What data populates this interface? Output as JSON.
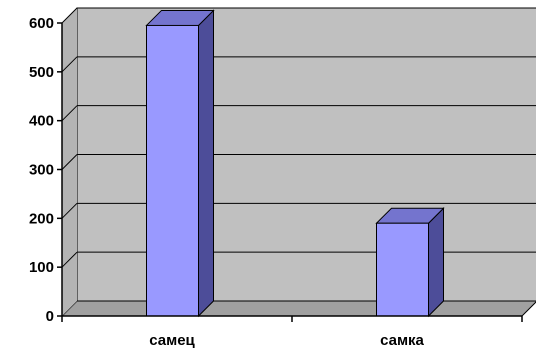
{
  "chart_data": {
    "type": "bar",
    "title": "",
    "xlabel": "",
    "ylabel": "",
    "categories": [
      "самец",
      "самка"
    ],
    "values": [
      595,
      190
    ],
    "ylim": [
      0,
      600
    ],
    "yticks": [
      0,
      100,
      200,
      300,
      400,
      500,
      600
    ],
    "grid": true,
    "legend": "none",
    "three_d": true,
    "colors": {
      "wall": "#c0c0c0",
      "floor": "#a0a0a0",
      "bar_front": "#9999ff",
      "bar_top": "#7474ce",
      "bar_side": "#4d4d99",
      "grid": "#000000",
      "axis": "#000000"
    }
  }
}
